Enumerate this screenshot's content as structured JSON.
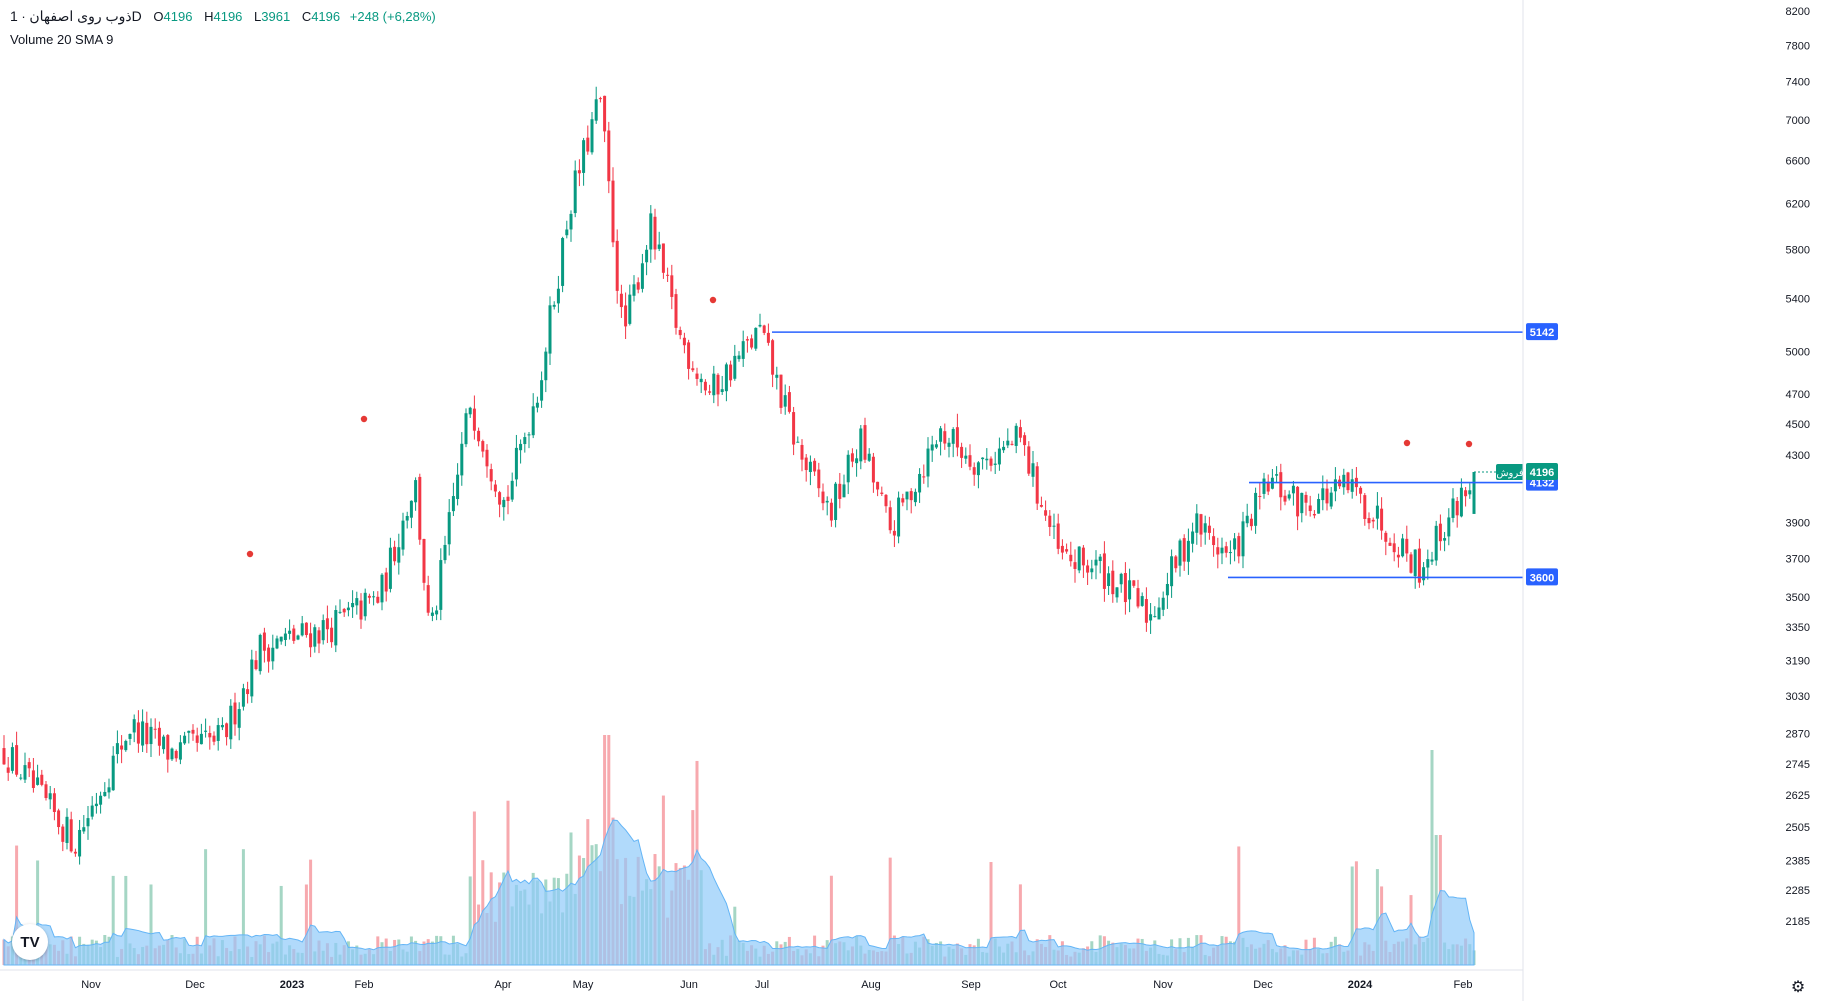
{
  "header": {
    "symbol": "ذوب روی اصفهان",
    "interval": "1D",
    "open_label": "O",
    "open": "4196",
    "high_label": "H",
    "high": "4196",
    "low_label": "L",
    "low": "3961",
    "close_label": "C",
    "close": "4196",
    "change": "+248 (+6,28%)",
    "volume_indicator": "Volume 20 SMA 9"
  },
  "colors": {
    "up": "#089981",
    "down": "#f23645",
    "up_volume": "#a5d6c4",
    "down_volume": "#f7a9ae",
    "volume_sma_fill": "#90caf9",
    "level_line": "#2962ff",
    "marker": "#e53935"
  },
  "chart_data": {
    "type": "candlestick",
    "y_axis_scale": "log",
    "y_ticks": [
      2185,
      2285,
      2385,
      2505,
      2625,
      2745,
      2870,
      3030,
      3190,
      3350,
      3500,
      3700,
      3900,
      4132,
      4300,
      4500,
      4700,
      5000,
      5400,
      5800,
      6200,
      6600,
      7000,
      7400,
      7800,
      8200
    ],
    "x_ticks": [
      "Nov",
      "Dec",
      "2023",
      "Feb",
      "Apr",
      "May",
      "Jun",
      "Jul",
      "Aug",
      "Sep",
      "Oct",
      "Nov",
      "Dec",
      "2024",
      "Feb"
    ],
    "price_path": [
      [
        "Oct 2022",
        2800
      ],
      [
        "early Nov 2022",
        2450
      ],
      [
        "mid Nov 2022",
        2900
      ],
      [
        "late Nov 2022",
        2790
      ],
      [
        "Dec 2022",
        2850
      ],
      [
        "mid Dec 2022",
        3250
      ],
      [
        "2023",
        3350
      ],
      [
        "mid Jan 2023",
        3500
      ],
      [
        "late Jan 2023",
        4150
      ],
      [
        "early Feb 2023",
        3280
      ],
      [
        "mid Feb 2023",
        4650
      ],
      [
        "Mar 2023",
        4000
      ],
      [
        "Apr 2023",
        4800
      ],
      [
        "mid Apr 2023",
        6200
      ],
      [
        "May 2023",
        7230
      ],
      [
        "mid May 2023",
        5100
      ],
      [
        "late May 2023",
        6000
      ],
      [
        "Jun 2023",
        5100
      ],
      [
        "mid Jun 2023",
        4700
      ],
      [
        "Jul 2023",
        5150
      ],
      [
        "mid Jul 2023",
        4300
      ],
      [
        "Aug 2023",
        3950
      ],
      [
        "mid Aug 2023",
        4400
      ],
      [
        "late Aug 2023",
        3850
      ],
      [
        "Sep 2023",
        4450
      ],
      [
        "mid Sep 2023",
        4250
      ],
      [
        "Oct 2023",
        4400
      ],
      [
        "mid Oct 2023",
        3700
      ],
      [
        "late Oct 2023",
        3650
      ],
      [
        "Nov 2023",
        3400
      ],
      [
        "mid Nov 2023",
        3900
      ],
      [
        "late Nov 2023",
        3700
      ],
      [
        "Dec 2023",
        4140
      ],
      [
        "mid Dec 2023",
        4000
      ],
      [
        "2024",
        4100
      ],
      [
        "mid Jan 2024",
        3850
      ],
      [
        "late Jan 2024",
        3650
      ],
      [
        "Feb 2024",
        4196
      ]
    ],
    "last_price": 4196,
    "last_price_tag": "فروش",
    "levels": [
      {
        "value": 5142,
        "label": "5142"
      },
      {
        "value": 4132,
        "label": "4132"
      },
      {
        "value": 3600,
        "label": "3600"
      }
    ],
    "volume_sma_period": 9,
    "markers": "red dots above selected candles"
  }
}
